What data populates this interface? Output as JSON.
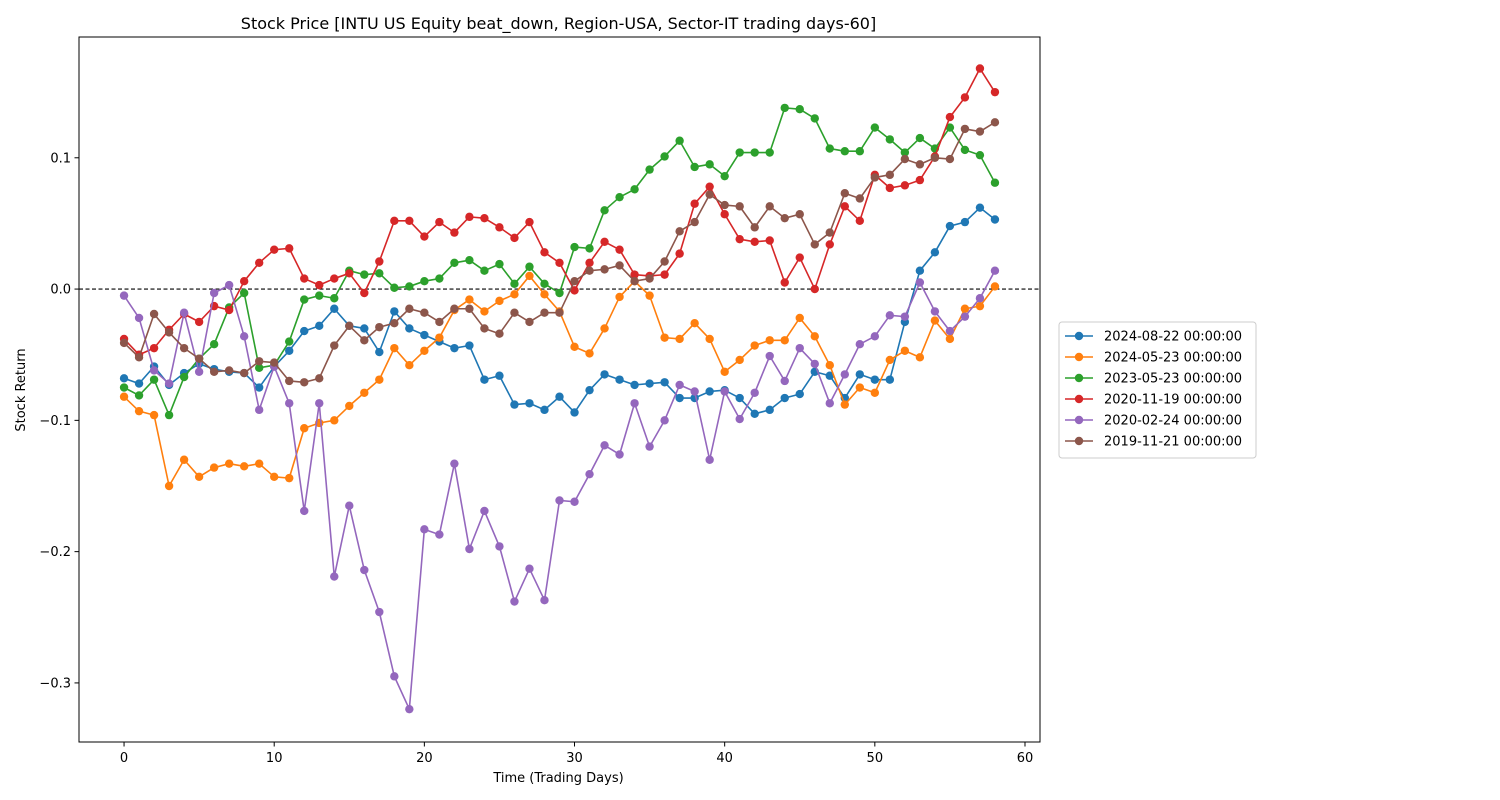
{
  "chart_data": {
    "type": "line",
    "title": "Stock Price [INTU US Equity beat_down, Region-USA, Sector-IT trading days-60]",
    "xlabel": "Time (Trading Days)",
    "ylabel": "Stock Return",
    "xlim": [
      -3,
      61
    ],
    "ylim": [
      -0.345,
      0.192
    ],
    "xticks": [
      0,
      10,
      20,
      30,
      40,
      50,
      60
    ],
    "xtick_labels": [
      "0",
      "10",
      "20",
      "30",
      "40",
      "50",
      "60"
    ],
    "yticks": [
      -0.3,
      -0.2,
      -0.1,
      0.0,
      0.1
    ],
    "ytick_labels": [
      "−0.3",
      "−0.2",
      "−0.1",
      "0.0",
      "0.1"
    ],
    "reference_line": {
      "y": 0,
      "style": "dashed",
      "color": "#000000"
    },
    "legend_position": "outside-right",
    "grid": false,
    "x": [
      0,
      1,
      2,
      3,
      4,
      5,
      6,
      7,
      8,
      9,
      10,
      11,
      12,
      13,
      14,
      15,
      16,
      17,
      18,
      19,
      20,
      21,
      22,
      23,
      24,
      25,
      26,
      27,
      28,
      29,
      30,
      31,
      32,
      33,
      34,
      35,
      36,
      37,
      38,
      39,
      40,
      41,
      42,
      43,
      44,
      45,
      46,
      47,
      48,
      49,
      50,
      51,
      52,
      53,
      54,
      55,
      56,
      57,
      58
    ],
    "series": [
      {
        "name": "2024-08-22 00:00:00",
        "color": "#1f77b4",
        "values": [
          -0.068,
          -0.072,
          -0.059,
          -0.073,
          -0.064,
          -0.057,
          -0.061,
          -0.063,
          -0.064,
          -0.075,
          -0.059,
          -0.047,
          -0.032,
          -0.028,
          -0.015,
          -0.028,
          -0.03,
          -0.048,
          -0.017,
          -0.03,
          -0.035,
          -0.04,
          -0.045,
          -0.043,
          -0.069,
          -0.066,
          -0.088,
          -0.087,
          -0.092,
          -0.082,
          -0.094,
          -0.077,
          -0.065,
          -0.069,
          -0.073,
          -0.072,
          -0.071,
          -0.083,
          -0.083,
          -0.078,
          -0.077,
          -0.083,
          -0.095,
          -0.092,
          -0.083,
          -0.08,
          -0.063,
          -0.066,
          -0.083,
          -0.065,
          -0.069,
          -0.069,
          -0.025,
          0.014,
          0.028,
          0.048,
          0.051,
          0.062,
          0.053
        ]
      },
      {
        "name": "2024-05-23 00:00:00",
        "color": "#ff7f0e",
        "values": [
          -0.082,
          -0.093,
          -0.096,
          -0.15,
          -0.13,
          -0.143,
          -0.136,
          -0.133,
          -0.135,
          -0.133,
          -0.143,
          -0.144,
          -0.106,
          -0.102,
          -0.1,
          -0.089,
          -0.079,
          -0.069,
          -0.045,
          -0.058,
          -0.047,
          -0.037,
          -0.016,
          -0.008,
          -0.017,
          -0.009,
          -0.004,
          0.01,
          -0.004,
          -0.017,
          -0.044,
          -0.049,
          -0.03,
          -0.006,
          0.006,
          -0.005,
          -0.037,
          -0.038,
          -0.026,
          -0.038,
          -0.063,
          -0.054,
          -0.043,
          -0.039,
          -0.039,
          -0.022,
          -0.036,
          -0.058,
          -0.088,
          -0.075,
          -0.079,
          -0.054,
          -0.047,
          -0.052,
          -0.024,
          -0.038,
          -0.015,
          -0.013,
          0.002
        ]
      },
      {
        "name": "2023-05-23 00:00:00",
        "color": "#2ca02c",
        "values": [
          -0.075,
          -0.081,
          -0.069,
          -0.096,
          -0.067,
          -0.053,
          -0.042,
          -0.014,
          -0.003,
          -0.06,
          -0.058,
          -0.04,
          -0.008,
          -0.005,
          -0.007,
          0.014,
          0.011,
          0.012,
          0.001,
          0.002,
          0.006,
          0.008,
          0.02,
          0.022,
          0.014,
          0.019,
          0.004,
          0.017,
          0.004,
          -0.003,
          0.032,
          0.031,
          0.06,
          0.07,
          0.076,
          0.091,
          0.101,
          0.113,
          0.093,
          0.095,
          0.086,
          0.104,
          0.104,
          0.104,
          0.138,
          0.137,
          0.13,
          0.107,
          0.105,
          0.105,
          0.123,
          0.114,
          0.104,
          0.115,
          0.107,
          0.123,
          0.106,
          0.102,
          0.081
        ]
      },
      {
        "name": "2020-11-19 00:00:00",
        "color": "#d62728",
        "values": [
          -0.038,
          -0.05,
          -0.045,
          -0.031,
          -0.019,
          -0.025,
          -0.013,
          -0.016,
          0.006,
          0.02,
          0.03,
          0.031,
          0.008,
          0.003,
          0.008,
          0.012,
          -0.003,
          0.021,
          0.052,
          0.052,
          0.04,
          0.051,
          0.043,
          0.055,
          0.054,
          0.047,
          0.039,
          0.051,
          0.028,
          0.02,
          -0.001,
          0.02,
          0.036,
          0.03,
          0.011,
          0.01,
          0.011,
          0.027,
          0.065,
          0.078,
          0.057,
          0.038,
          0.036,
          0.037,
          0.005,
          0.024,
          0.0,
          0.034,
          0.063,
          0.052,
          0.087,
          0.077,
          0.079,
          0.083,
          0.101,
          0.131,
          0.146,
          0.168,
          0.15
        ]
      },
      {
        "name": "2020-02-24 00:00:00",
        "color": "#9467bd",
        "values": [
          -0.005,
          -0.022,
          -0.062,
          -0.072,
          -0.018,
          -0.063,
          -0.003,
          0.003,
          -0.036,
          -0.092,
          -0.059,
          -0.087,
          -0.169,
          -0.087,
          -0.219,
          -0.165,
          -0.214,
          -0.246,
          -0.295,
          -0.32,
          -0.183,
          -0.187,
          -0.133,
          -0.198,
          -0.169,
          -0.196,
          -0.238,
          -0.213,
          -0.237,
          -0.161,
          -0.162,
          -0.141,
          -0.119,
          -0.126,
          -0.087,
          -0.12,
          -0.1,
          -0.073,
          -0.078,
          -0.13,
          -0.078,
          -0.099,
          -0.079,
          -0.051,
          -0.07,
          -0.045,
          -0.057,
          -0.087,
          -0.065,
          -0.042,
          -0.036,
          -0.02,
          -0.021,
          0.005,
          -0.017,
          -0.032,
          -0.021,
          -0.007,
          0.014
        ]
      },
      {
        "name": "2019-11-21 00:00:00",
        "color": "#8c564b",
        "values": [
          -0.041,
          -0.052,
          -0.019,
          -0.033,
          -0.045,
          -0.053,
          -0.063,
          -0.062,
          -0.064,
          -0.055,
          -0.056,
          -0.07,
          -0.071,
          -0.068,
          -0.043,
          -0.028,
          -0.039,
          -0.029,
          -0.026,
          -0.015,
          -0.018,
          -0.025,
          -0.015,
          -0.015,
          -0.03,
          -0.034,
          -0.018,
          -0.025,
          -0.018,
          -0.018,
          0.006,
          0.014,
          0.015,
          0.018,
          0.006,
          0.008,
          0.021,
          0.044,
          0.051,
          0.072,
          0.064,
          0.063,
          0.047,
          0.063,
          0.054,
          0.057,
          0.034,
          0.043,
          0.073,
          0.069,
          0.085,
          0.087,
          0.099,
          0.095,
          0.1,
          0.099,
          0.122,
          0.12,
          0.127
        ]
      }
    ]
  }
}
